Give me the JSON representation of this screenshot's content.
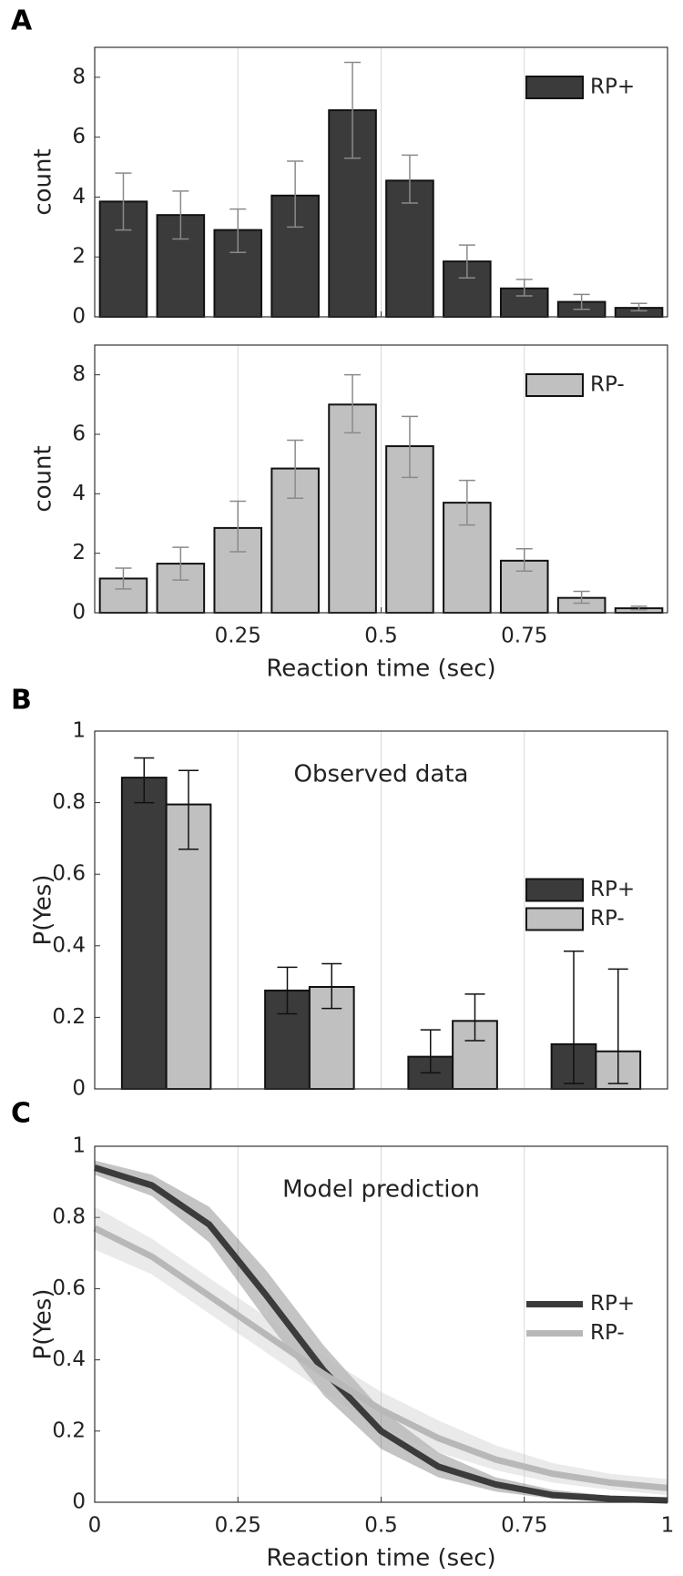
{
  "chart_data": [
    {
      "type": "histogram",
      "panel_label": "A",
      "ylabel": "count",
      "bins": [
        0,
        0.1,
        0.2,
        0.3,
        0.4,
        0.5,
        0.6,
        0.7,
        0.8,
        0.9,
        1
      ],
      "xlim": [
        0,
        1
      ],
      "xticks": [
        0.25,
        0.5,
        0.75
      ],
      "show_xtick_labels": false,
      "ylim": [
        0,
        9
      ],
      "yticks": [
        0,
        2,
        4,
        6,
        8
      ],
      "legend": "upper right",
      "error_color": "#8a8a8a",
      "series": [
        {
          "name": "RP+",
          "color": "#3b3b3b",
          "values": [
            3.85,
            3.4,
            2.9,
            4.05,
            6.9,
            4.55,
            1.85,
            0.95,
            0.5,
            0.3
          ],
          "lower": [
            2.9,
            2.6,
            2.15,
            3.0,
            5.3,
            3.8,
            1.3,
            0.7,
            0.25,
            0.2
          ],
          "upper": [
            4.8,
            4.2,
            3.6,
            5.2,
            8.5,
            5.4,
            2.4,
            1.25,
            0.75,
            0.45
          ]
        }
      ]
    },
    {
      "type": "histogram",
      "ylabel": "count",
      "xlabel": "Reaction time (sec)",
      "bins": [
        0,
        0.1,
        0.2,
        0.3,
        0.4,
        0.5,
        0.6,
        0.7,
        0.8,
        0.9,
        1
      ],
      "xlim": [
        0,
        1
      ],
      "xticks": [
        0.25,
        0.5,
        0.75
      ],
      "show_xtick_labels": true,
      "ylim": [
        0,
        9
      ],
      "yticks": [
        0,
        2,
        4,
        6,
        8
      ],
      "legend": "upper right",
      "error_color": "#8a8a8a",
      "series": [
        {
          "name": "RP-",
          "color": "#c0c0c0",
          "values": [
            1.15,
            1.65,
            2.85,
            4.85,
            7.0,
            5.6,
            3.7,
            1.75,
            0.5,
            0.15
          ],
          "lower": [
            0.8,
            1.1,
            2.05,
            3.85,
            6.05,
            4.55,
            2.95,
            1.4,
            0.32,
            0.1
          ],
          "upper": [
            1.5,
            2.2,
            3.75,
            5.8,
            8.0,
            6.6,
            4.45,
            2.15,
            0.72,
            0.22
          ]
        }
      ]
    },
    {
      "type": "bar",
      "panel_label": "B",
      "ylabel": "P(Yes)",
      "annotation": "Observed data",
      "categories": [
        null,
        null,
        null,
        null
      ],
      "ylim": [
        0,
        1
      ],
      "yticks": [
        0,
        0.2,
        0.4,
        0.6,
        0.8,
        1
      ],
      "legend": "center right",
      "error_color": "#111111",
      "series": [
        {
          "name": "RP+",
          "color": "#3b3b3b",
          "values": [
            0.87,
            0.275,
            0.09,
            0.125
          ],
          "lower": [
            0.8,
            0.21,
            0.045,
            0.015
          ],
          "upper": [
            0.925,
            0.34,
            0.165,
            0.385
          ]
        },
        {
          "name": "RP-",
          "color": "#c0c0c0",
          "values": [
            0.795,
            0.285,
            0.19,
            0.105
          ],
          "lower": [
            0.67,
            0.225,
            0.135,
            0.015
          ],
          "upper": [
            0.89,
            0.35,
            0.265,
            0.335
          ]
        }
      ]
    },
    {
      "type": "line",
      "panel_label": "C",
      "ylabel": "P(Yes)",
      "xlabel": "Reaction time (sec)",
      "annotation": "Model prediction",
      "x": [
        0,
        0.1,
        0.2,
        0.3,
        0.4,
        0.5,
        0.6,
        0.7,
        0.8,
        0.9,
        1
      ],
      "xlim": [
        0,
        1
      ],
      "xticks": [
        0,
        0.25,
        0.5,
        0.75,
        1
      ],
      "show_xtick_labels": true,
      "ylim": [
        0,
        1
      ],
      "yticks": [
        0,
        0.2,
        0.4,
        0.6,
        0.8,
        1
      ],
      "legend": "center right",
      "series": [
        {
          "name": "RP+",
          "color": "#3b3b3b",
          "values": [
            0.94,
            0.89,
            0.78,
            0.58,
            0.37,
            0.2,
            0.1,
            0.05,
            0.02,
            0.01,
            0.005
          ],
          "lower": [
            0.92,
            0.86,
            0.73,
            0.51,
            0.3,
            0.15,
            0.07,
            0.03,
            0.01,
            0.004,
            0.002
          ],
          "upper": [
            0.96,
            0.92,
            0.83,
            0.65,
            0.44,
            0.26,
            0.14,
            0.07,
            0.035,
            0.018,
            0.01
          ]
        },
        {
          "name": "RP-",
          "color": "#b8b8b8",
          "values": [
            0.77,
            0.69,
            0.58,
            0.47,
            0.36,
            0.26,
            0.18,
            0.12,
            0.08,
            0.055,
            0.04
          ],
          "lower": [
            0.71,
            0.64,
            0.53,
            0.42,
            0.31,
            0.21,
            0.14,
            0.09,
            0.055,
            0.035,
            0.02
          ],
          "upper": [
            0.83,
            0.74,
            0.63,
            0.52,
            0.41,
            0.31,
            0.23,
            0.16,
            0.11,
            0.08,
            0.065
          ]
        }
      ]
    }
  ]
}
